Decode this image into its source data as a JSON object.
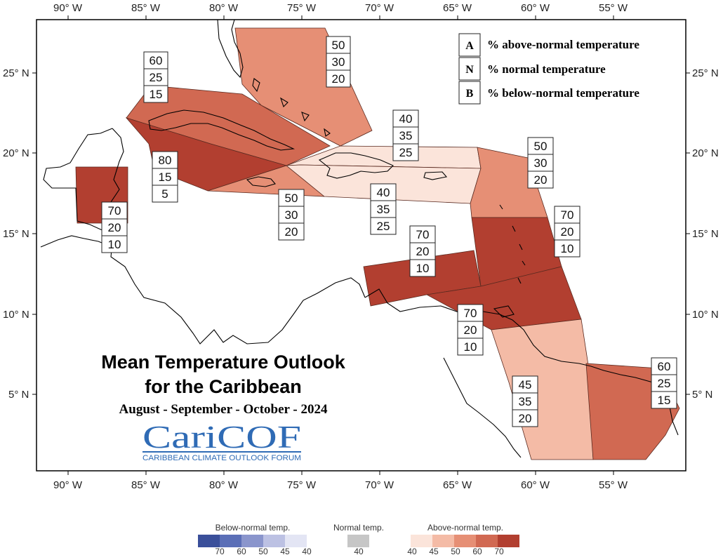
{
  "map": {
    "title": "Mean Temperature Outlook",
    "title_line2": "for the Caribbean",
    "period": "August - September - October - 2024",
    "logo_text": "CariCOF",
    "logo_subtext": "CARIBBEAN CLIMATE OUTLOOK FORUM",
    "lon_ticks": [
      "90° W",
      "85° W",
      "80° W",
      "75° W",
      "70° W",
      "65° W",
      "60° W",
      "55° W"
    ],
    "lat_ticks": [
      "25° N",
      "20° N",
      "15° N",
      "10° N",
      "5° N"
    ],
    "key": [
      {
        "letter": "A",
        "text": "% above-normal temperature"
      },
      {
        "letter": "N",
        "text": "% normal temperature"
      },
      {
        "letter": "B",
        "text": "% below-normal temperature"
      }
    ],
    "regions": [
      {
        "name": "bahamas",
        "color": "#e68f75",
        "probs": [
          "50",
          "30",
          "20"
        ]
      },
      {
        "name": "cuba",
        "color": "#d16952",
        "probs": [
          "60",
          "25",
          "15"
        ]
      },
      {
        "name": "cayman",
        "color": "#b23f30",
        "probs": [
          "80",
          "15",
          "5"
        ]
      },
      {
        "name": "jamaica",
        "color": "#e68f75",
        "probs": [
          "50",
          "30",
          "20"
        ]
      },
      {
        "name": "hispaniola-north",
        "color": "#fbe4da",
        "probs": [
          "40",
          "35",
          "25"
        ]
      },
      {
        "name": "hispaniola-south",
        "color": "#fbe4da",
        "probs": [
          "40",
          "35",
          "25"
        ]
      },
      {
        "name": "belize",
        "color": "#b23f30",
        "probs": [
          "70",
          "20",
          "10"
        ]
      },
      {
        "name": "leeward",
        "color": "#e68f75",
        "probs": [
          "50",
          "30",
          "20"
        ]
      },
      {
        "name": "windward",
        "color": "#b23f30",
        "probs": [
          "70",
          "20",
          "10"
        ]
      },
      {
        "name": "abc-islands",
        "color": "#b23f30",
        "probs": [
          "70",
          "20",
          "10"
        ]
      },
      {
        "name": "trinidad",
        "color": "#b23f30",
        "probs": [
          "70",
          "20",
          "10"
        ]
      },
      {
        "name": "guyana",
        "color": "#f4bba6",
        "probs": [
          "45",
          "35",
          "20"
        ]
      },
      {
        "name": "suriname-guiana",
        "color": "#d16952",
        "probs": [
          "60",
          "25",
          "15"
        ]
      }
    ],
    "colorbar": {
      "below_title": "Below-normal temp.",
      "normal_title": "Normal temp.",
      "above_title": "Above-normal temp.",
      "below_colors": [
        "#3a4f9a",
        "#5b6fb7",
        "#8a95cc",
        "#bcc1e3",
        "#e3e5f4"
      ],
      "normal_color": "#c6c6c6",
      "above_colors": [
        "#fbe4da",
        "#f4bba6",
        "#e68f75",
        "#d16952",
        "#b23f30"
      ],
      "below_ticks": [
        "70",
        "60",
        "50",
        "45",
        "40"
      ],
      "normal_ticks": [
        "40"
      ],
      "above_ticks": [
        "40",
        "45",
        "50",
        "60",
        "70"
      ]
    }
  }
}
